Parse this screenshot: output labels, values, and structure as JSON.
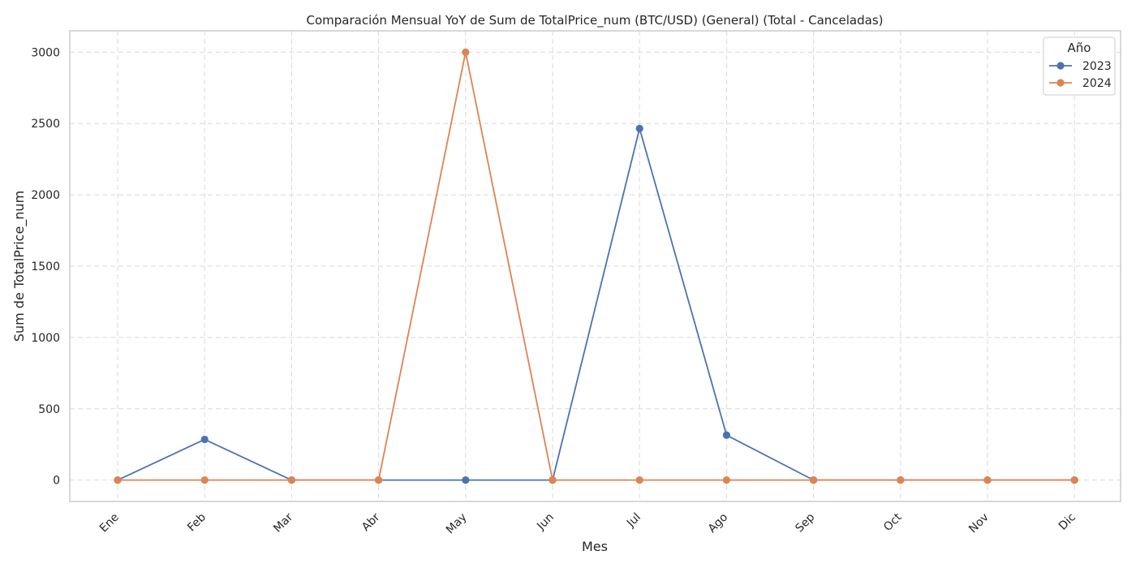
{
  "chart_data": {
    "type": "line",
    "title": "Comparación Mensual YoY de Sum de TotalPrice_num (BTC/USD) (General) (Total - Canceladas)",
    "xlabel": "Mes",
    "ylabel": "Sum de TotalPrice_num",
    "categories": [
      "Ene",
      "Feb",
      "Mar",
      "Abr",
      "May",
      "Jun",
      "Jul",
      "Ago",
      "Sep",
      "Oct",
      "Nov",
      "Dic"
    ],
    "ylim": [
      -150,
      3150
    ],
    "yticks": [
      0,
      500,
      1000,
      1500,
      2000,
      2500,
      3000
    ],
    "grid": true,
    "legend": {
      "title": "Año",
      "placement": "top-right"
    },
    "series": [
      {
        "name": "2023",
        "color": "#4c72b0",
        "values": [
          0,
          285,
          0,
          0,
          0,
          0,
          2465,
          315,
          0,
          0,
          0,
          0
        ]
      },
      {
        "name": "2024",
        "color": "#dd8452",
        "values": [
          0,
          0,
          0,
          0,
          3000,
          0,
          0,
          0,
          0,
          0,
          0,
          0
        ]
      }
    ]
  }
}
